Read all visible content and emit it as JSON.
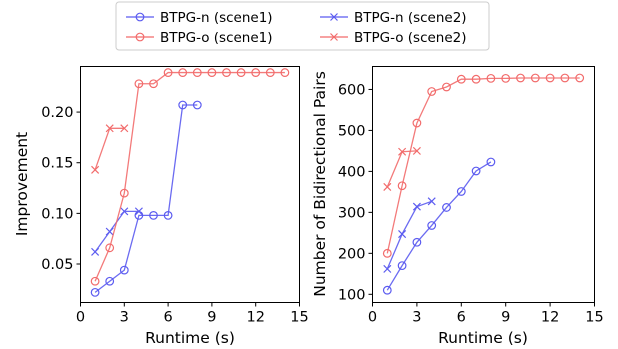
{
  "legend": {
    "entries": [
      {
        "label": "BTPG-n (scene1)",
        "series": "btpg_n_scene1"
      },
      {
        "label": "BTPG-n (scene2)",
        "series": "btpg_n_scene2"
      },
      {
        "label": "BTPG-o (scene1)",
        "series": "btpg_o_scene1"
      },
      {
        "label": "BTPG-o (scene2)",
        "series": "btpg_o_scene2"
      }
    ],
    "placement": "top-center",
    "columns": 2
  },
  "colors": {
    "btpg_n": "#5b5bf0",
    "btpg_o": "#f26b6b"
  },
  "chart_data": [
    {
      "type": "line",
      "title": "",
      "xlabel": "Runtime (s)",
      "ylabel": "Improvement",
      "xlim": [
        0,
        15
      ],
      "ylim": [
        0.012,
        0.245
      ],
      "xticks": [
        0,
        3,
        6,
        9,
        12,
        15
      ],
      "yticks": [
        0.05,
        0.1,
        0.15,
        0.2
      ],
      "ytick_labels": [
        "0.05",
        "0.10",
        "0.15",
        "0.20"
      ],
      "grid": false,
      "series": [
        {
          "name": "BTPG-n (scene1)",
          "color": "#5b5bf0",
          "marker": "circle",
          "x": [
            1,
            2,
            3,
            4,
            5,
            6,
            7,
            8
          ],
          "y": [
            0.022,
            0.033,
            0.044,
            0.098,
            0.098,
            0.098,
            0.207,
            0.207
          ]
        },
        {
          "name": "BTPG-n (scene2)",
          "color": "#5b5bf0",
          "marker": "x",
          "x": [
            1,
            2,
            3,
            4
          ],
          "y": [
            0.062,
            0.082,
            0.102,
            0.102
          ]
        },
        {
          "name": "BTPG-o (scene1)",
          "color": "#f26b6b",
          "marker": "circle",
          "x": [
            1,
            2,
            3,
            4,
            5,
            6,
            7,
            8,
            9,
            10,
            11,
            12,
            13,
            14
          ],
          "y": [
            0.033,
            0.066,
            0.12,
            0.228,
            0.228,
            0.239,
            0.239,
            0.239,
            0.239,
            0.239,
            0.239,
            0.239,
            0.239,
            0.239
          ]
        },
        {
          "name": "BTPG-o (scene2)",
          "color": "#f26b6b",
          "marker": "x",
          "x": [
            1,
            2,
            3
          ],
          "y": [
            0.143,
            0.184,
            0.184
          ]
        }
      ]
    },
    {
      "type": "line",
      "title": "",
      "xlabel": "Runtime (s)",
      "ylabel": "Number of Bidirectional Pairs",
      "xlim": [
        0,
        15
      ],
      "ylim": [
        80,
        656
      ],
      "xticks": [
        0,
        3,
        6,
        9,
        12,
        15
      ],
      "yticks": [
        100,
        200,
        300,
        400,
        500,
        600
      ],
      "ytick_labels": [
        "100",
        "200",
        "300",
        "400",
        "500",
        "600"
      ],
      "grid": false,
      "series": [
        {
          "name": "BTPG-n (scene1)",
          "color": "#5b5bf0",
          "marker": "circle",
          "x": [
            1,
            2,
            3,
            4,
            5,
            6,
            7,
            8
          ],
          "y": [
            110,
            170,
            227,
            268,
            312,
            351,
            401,
            423
          ]
        },
        {
          "name": "BTPG-n (scene2)",
          "color": "#5b5bf0",
          "marker": "x",
          "x": [
            1,
            2,
            3,
            4
          ],
          "y": [
            162,
            247,
            314,
            327
          ]
        },
        {
          "name": "BTPG-o (scene1)",
          "color": "#f26b6b",
          "marker": "circle",
          "x": [
            1,
            2,
            3,
            4,
            5,
            6,
            7,
            8,
            9,
            10,
            11,
            12,
            13,
            14
          ],
          "y": [
            200,
            365,
            518,
            595,
            606,
            625,
            625,
            627,
            627,
            628,
            628,
            628,
            628,
            628
          ]
        },
        {
          "name": "BTPG-o (scene2)",
          "color": "#f26b6b",
          "marker": "x",
          "x": [
            1,
            2,
            3
          ],
          "y": [
            362,
            448,
            450
          ]
        }
      ]
    }
  ]
}
